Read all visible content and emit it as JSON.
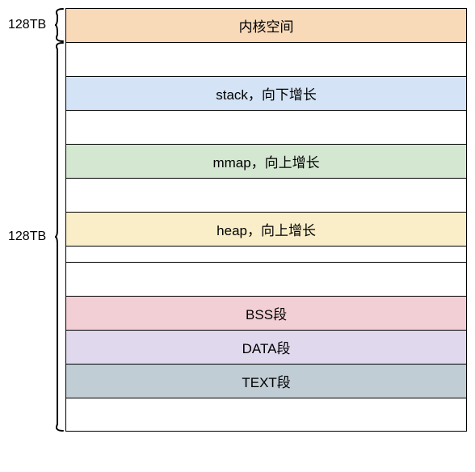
{
  "diagram": {
    "type": "memory-layout",
    "font_size": 17,
    "label_font_size": 16,
    "border_color": "#000000",
    "text_color": "#000000",
    "background": "#ffffff",
    "brace_stroke": "#000000",
    "brace_stroke_width": 2,
    "top_label": "128TB",
    "bottom_label": "128TB",
    "top_span_rows": 1,
    "bottom_span_rows": 12,
    "segments": [
      {
        "id": "kernel",
        "label": "内核空间",
        "bg": "#f8d9b8",
        "h": 42
      },
      {
        "id": "gap1",
        "label": "",
        "bg": "#ffffff",
        "h": 42
      },
      {
        "id": "stack",
        "label": "stack，向下增长",
        "bg": "#d4e3f5",
        "h": 42
      },
      {
        "id": "gap2",
        "label": "",
        "bg": "#ffffff",
        "h": 42
      },
      {
        "id": "mmap",
        "label": "mmap，向上增长",
        "bg": "#d4e8d1",
        "h": 42
      },
      {
        "id": "gap3",
        "label": "",
        "bg": "#ffffff",
        "h": 42
      },
      {
        "id": "heap",
        "label": "heap，向上增长",
        "bg": "#faeec8",
        "h": 42
      },
      {
        "id": "gap4",
        "label": "",
        "bg": "#ffffff",
        "h": 20
      },
      {
        "id": "gap5",
        "label": "",
        "bg": "#ffffff",
        "h": 42
      },
      {
        "id": "bss",
        "label": "BSS段",
        "bg": "#f2cfd4",
        "h": 42
      },
      {
        "id": "data",
        "label": "DATA段",
        "bg": "#e0d8ec",
        "h": 42
      },
      {
        "id": "text",
        "label": "TEXT段",
        "bg": "#c0cdd5",
        "h": 42
      },
      {
        "id": "gap6",
        "label": "",
        "bg": "#ffffff",
        "h": 42
      }
    ]
  }
}
